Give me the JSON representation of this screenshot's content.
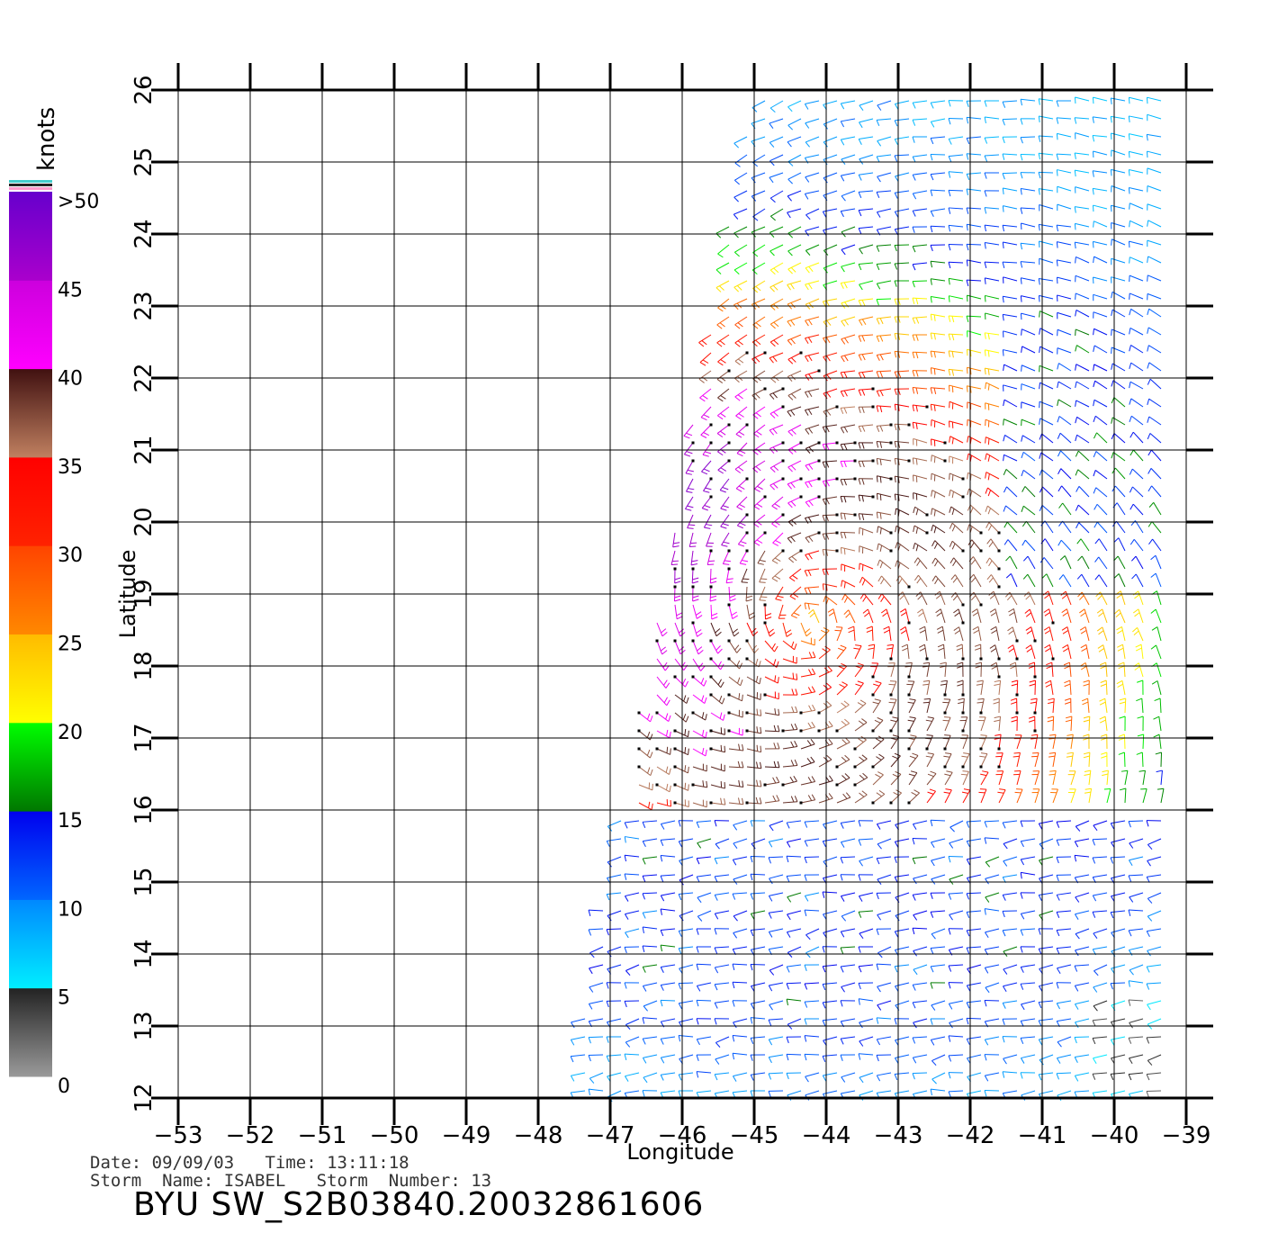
{
  "chart_data": {
    "type": "wind_barb_map",
    "xlabel": "Longitude",
    "ylabel": "Latitude",
    "xlim": [
      -53,
      -39
    ],
    "ylim": [
      12,
      26
    ],
    "x_ticks": [
      "-53",
      "-52",
      "-51",
      "-50",
      "-49",
      "-48",
      "-47",
      "-46",
      "-45",
      "-44",
      "-43",
      "-42",
      "-41",
      "-40",
      "-39"
    ],
    "y_ticks": [
      "12",
      "13",
      "14",
      "15",
      "16",
      "17",
      "18",
      "19",
      "20",
      "21",
      "22",
      "23",
      "24",
      "25",
      "26"
    ],
    "grid": true,
    "storm_center": {
      "lon": -44.2,
      "lat": 18.6
    },
    "legend": {
      "title": "knots",
      "labels": [
        ">50",
        "45",
        "40",
        "35",
        "30",
        "25",
        "20",
        "15",
        "10",
        "5",
        "0"
      ],
      "bins": [
        {
          "from": 0,
          "to": 5,
          "colors": [
            "#9a9a9a",
            "#222222"
          ]
        },
        {
          "from": 5,
          "to": 10,
          "colors": [
            "#00eeff",
            "#0088ff"
          ]
        },
        {
          "from": 10,
          "to": 15,
          "colors": [
            "#0066ff",
            "#0000ee"
          ]
        },
        {
          "from": 15,
          "to": 20,
          "colors": [
            "#007700",
            "#00ff00"
          ]
        },
        {
          "from": 20,
          "to": 25,
          "colors": [
            "#ffff00",
            "#ffbb00"
          ]
        },
        {
          "from": 25,
          "to": 30,
          "colors": [
            "#ff8800",
            "#ff4400"
          ]
        },
        {
          "from": 30,
          "to": 35,
          "colors": [
            "#ff2200",
            "#ff0000"
          ]
        },
        {
          "from": 35,
          "to": 40,
          "colors": [
            "#c08060",
            "#401010"
          ]
        },
        {
          "from": 40,
          "to": 45,
          "colors": [
            "#ff00ff",
            "#cc00dd"
          ]
        },
        {
          "from": 45,
          "to": 50,
          "colors": [
            "#aa00cc",
            "#6600cc"
          ]
        }
      ],
      "top_stripes": [
        "#44cccc",
        "#222222",
        "#ff99cc"
      ]
    }
  },
  "footer": {
    "date_line": "Date: 09/09/03   Time: 13:11:18",
    "storm_line": "Storm  Name: ISABEL   Storm  Number: 13",
    "product_id": "BYU  SW_S2B03840.20032861606"
  }
}
